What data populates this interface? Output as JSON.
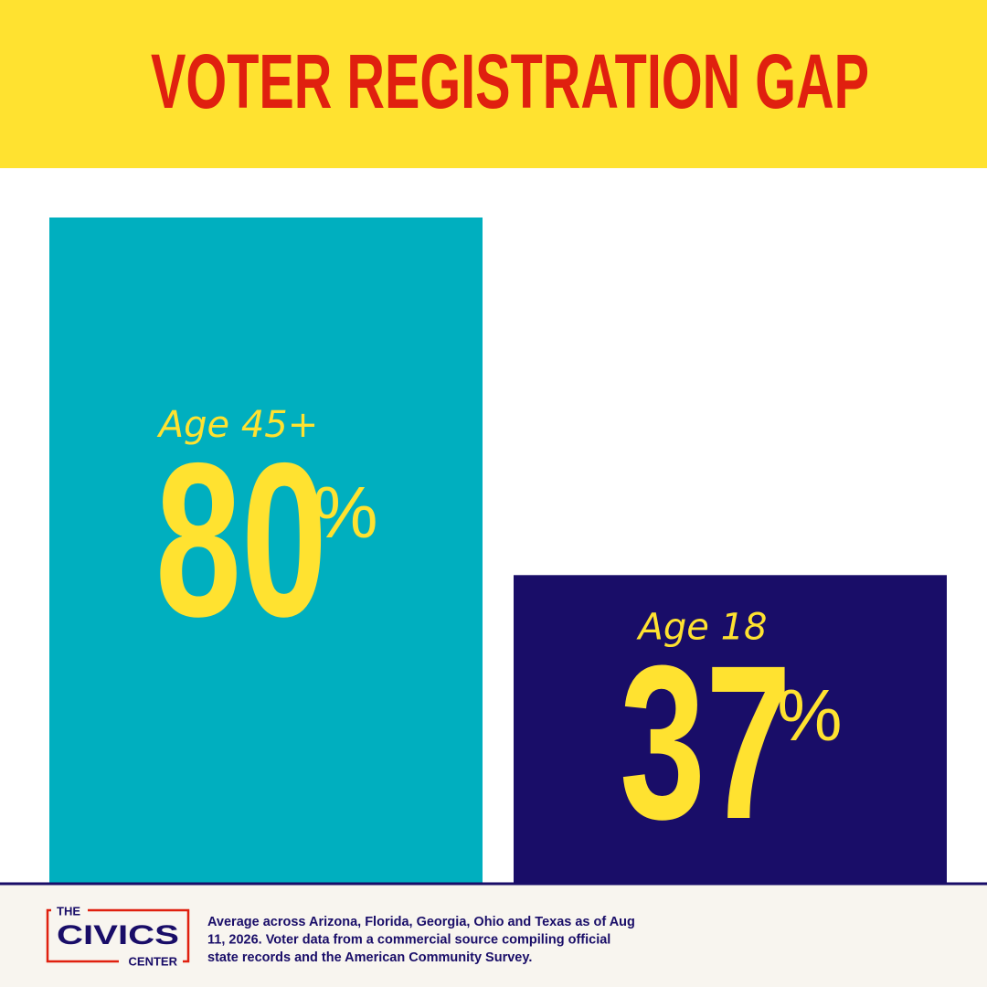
{
  "chart_data": {
    "type": "bar",
    "title": "VOTER REGISTRATION GAP",
    "categories": [
      "Age 45+",
      "Age 18"
    ],
    "values": [
      80,
      37
    ],
    "unit": "%",
    "colors": [
      "#00afbf",
      "#190d68"
    ],
    "note": [
      "Average across Arizona, Florida, Georgia, Ohio and Texas as of Aug",
      "11, 2026. Voter data from a commercial source compiling official",
      "state records and the American Community Survey."
    ],
    "logo": [
      "THE",
      "CIVICS",
      "CENTER"
    ]
  }
}
